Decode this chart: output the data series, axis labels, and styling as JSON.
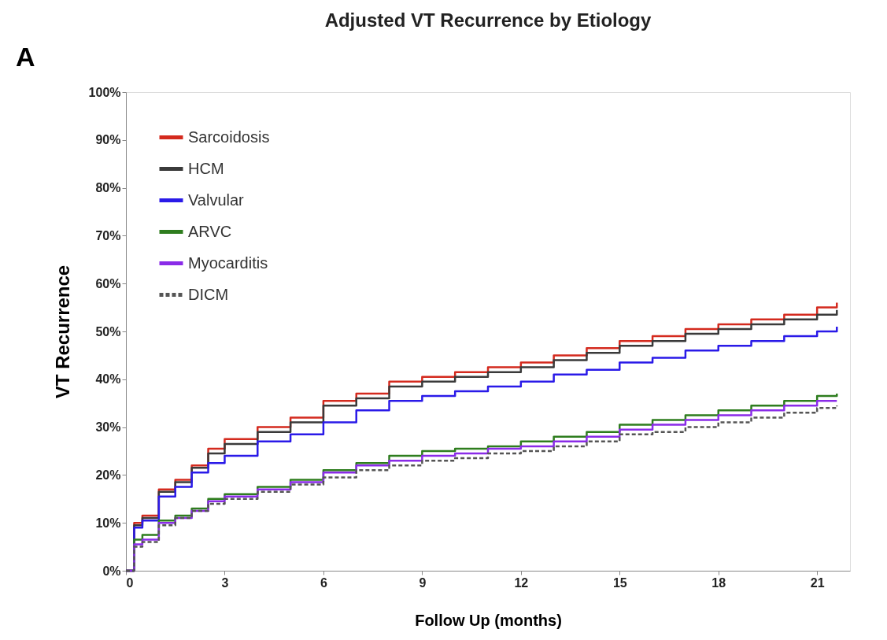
{
  "chart_data": {
    "type": "step",
    "title": "Adjusted VT Recurrence by Etiology",
    "xlabel": "Follow Up (months)",
    "ylabel": "VT Recurrence",
    "annotations": [
      "A"
    ],
    "x": [
      0,
      0.25,
      0.5,
      1,
      1.5,
      2,
      2.5,
      3,
      4,
      5,
      6,
      7,
      8,
      9,
      10,
      11,
      12,
      13,
      14,
      15,
      16,
      17,
      18,
      19,
      20,
      21,
      21.6
    ],
    "series": [
      {
        "name": "Sarcoidosis",
        "color": "#d42a1e",
        "values": [
          0,
          10,
          11.5,
          17,
          19,
          22,
          25.5,
          27.5,
          30,
          32,
          35.5,
          37,
          39.5,
          40.5,
          41.5,
          42.5,
          43.5,
          45,
          46.5,
          48,
          49,
          50.5,
          51.5,
          52.5,
          53.5,
          55,
          56
        ]
      },
      {
        "name": "HCM",
        "color": "#3a3a3a",
        "values": [
          0,
          9.5,
          11,
          16.5,
          18.5,
          21.5,
          24.5,
          26.5,
          29,
          31,
          34.5,
          36,
          38.5,
          39.5,
          40.5,
          41.5,
          42.5,
          44,
          45.5,
          47,
          48,
          49.5,
          50.5,
          51.5,
          52.5,
          53.5,
          54.5
        ]
      },
      {
        "name": "Valvular",
        "color": "#2a1ae8",
        "values": [
          0,
          9,
          10.5,
          15.5,
          17.5,
          20.5,
          22.5,
          24,
          27,
          28.5,
          31,
          33.5,
          35.5,
          36.5,
          37.5,
          38.5,
          39.5,
          41,
          42,
          43.5,
          44.5,
          46,
          47,
          48,
          49,
          50,
          51
        ]
      },
      {
        "name": "ARVC",
        "color": "#2e7d1e",
        "values": [
          0,
          6.5,
          7.5,
          10.5,
          11.5,
          13,
          15,
          16,
          17.5,
          19,
          21,
          22.5,
          24,
          25,
          25.5,
          26,
          27,
          28,
          29,
          30.5,
          31.5,
          32.5,
          33.5,
          34.5,
          35.5,
          36.5,
          37
        ]
      },
      {
        "name": "Myocarditis",
        "color": "#8a2be8",
        "values": [
          0,
          5.5,
          6.5,
          10,
          11,
          12.5,
          14.5,
          15.5,
          17,
          18.5,
          20.5,
          22,
          23,
          24,
          24.5,
          25.5,
          26,
          27,
          28,
          29.5,
          30.5,
          31.5,
          32.5,
          33.5,
          34.5,
          35.5,
          35.5
        ]
      },
      {
        "name": "DICM",
        "color": "#555555",
        "line_style": "dashed",
        "values": [
          0,
          5,
          6,
          9.5,
          11,
          12.5,
          14,
          15,
          16.5,
          18,
          19.5,
          21,
          22,
          23,
          23.5,
          24.5,
          25,
          26,
          27,
          28.5,
          29,
          30,
          31,
          32,
          33,
          34,
          34.5
        ]
      }
    ],
    "xlim": [
      0,
      22
    ],
    "xticks": [
      0,
      3,
      6,
      9,
      12,
      15,
      18,
      21
    ],
    "ylim": [
      0,
      100
    ],
    "yticks": [
      {
        "value": 0,
        "label": "0%"
      },
      {
        "value": 10,
        "label": "10%"
      },
      {
        "value": 20,
        "label": "20%"
      },
      {
        "value": 30,
        "label": "30%"
      },
      {
        "value": 40,
        "label": "40%"
      },
      {
        "value": 50,
        "label": "50%"
      },
      {
        "value": 60,
        "label": "60%"
      },
      {
        "value": 70,
        "label": "70%"
      },
      {
        "value": 80,
        "label": "80%"
      },
      {
        "value": 90,
        "label": "90%"
      },
      {
        "value": 100,
        "label": "100%"
      }
    ],
    "grid": false,
    "legend": "top left",
    "line_style": "solid",
    "marker": "none"
  }
}
